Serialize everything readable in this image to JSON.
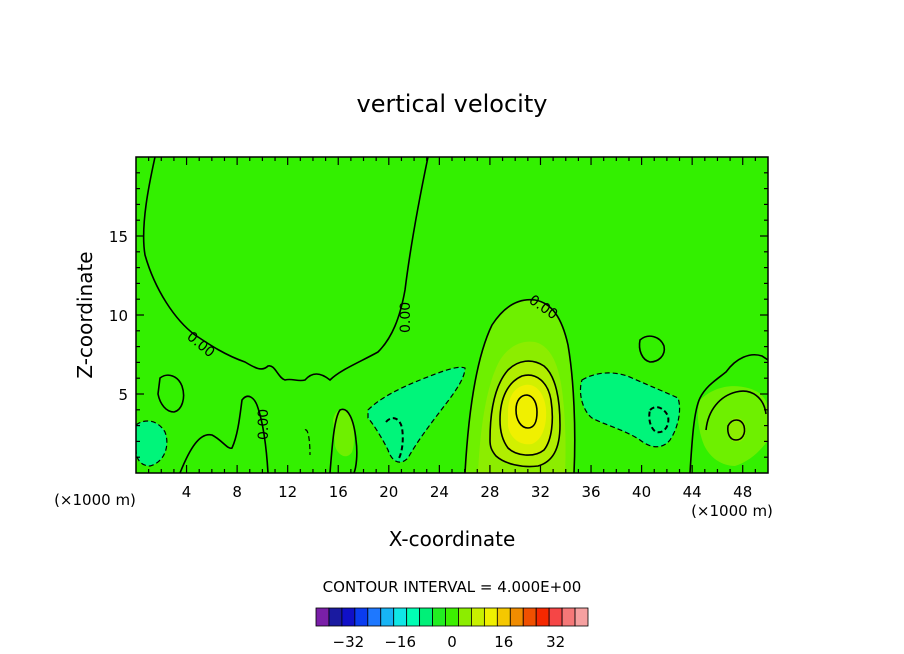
{
  "chart_data": {
    "type": "heatmap",
    "title": "vertical velocity",
    "xlabel": "X-coordinate",
    "ylabel": "Z-coordinate",
    "x_units_left": "(×1000 m)",
    "x_units_right": "(×1000 m)",
    "xlim": [
      0,
      50
    ],
    "ylim": [
      0,
      20
    ],
    "x_ticks": [
      4,
      8,
      12,
      16,
      20,
      24,
      28,
      32,
      36,
      40,
      44,
      48
    ],
    "y_ticks": [
      5,
      10,
      15
    ],
    "contour_labels": [
      "0.00",
      "0.00",
      "0.00",
      "0.00"
    ],
    "contour_interval_text": "CONTOUR INTERVAL = 4.000E+00",
    "colorbar": {
      "colors": [
        "#7a1fa8",
        "#1a1aa0",
        "#1010c8",
        "#0a3cf0",
        "#1e78ff",
        "#17b4f5",
        "#10e6e6",
        "#00ffb4",
        "#00f078",
        "#22ee22",
        "#3cf000",
        "#8ced00",
        "#c8f000",
        "#f0f000",
        "#f5c800",
        "#f08c00",
        "#f05000",
        "#f52800",
        "#f54646",
        "#f57878",
        "#f5a0a0"
      ],
      "tick_labels": [
        "-32",
        "-16",
        "0",
        "16",
        "32"
      ],
      "tick_values": [
        -32,
        -16,
        0,
        16,
        32
      ],
      "min": -42,
      "max": 42
    },
    "regions": [
      {
        "name": "background",
        "value": 0.0,
        "color": "#33f000"
      },
      {
        "name": "updraft-32km",
        "x_center": 30.5,
        "z_center": 4.0,
        "peak": 14,
        "colors": [
          "#8ced00",
          "#c8f000",
          "#f0f000"
        ]
      },
      {
        "name": "downdraft-22km",
        "x_center": 22,
        "z_center": 4,
        "min": -6,
        "color": "#00f57a"
      },
      {
        "name": "downdraft-38km",
        "x_center": 38,
        "z_center": 4,
        "min": -6,
        "color": "#00f57a"
      },
      {
        "name": "downdraft-1km",
        "x_center": 1,
        "z_center": 2,
        "min": -4,
        "color": "#00f57a"
      },
      {
        "name": "updraft-48km",
        "x_center": 47.5,
        "z_center": 3,
        "peak": 8,
        "colors": [
          "#6ef000",
          "#8ced00"
        ]
      }
    ]
  }
}
